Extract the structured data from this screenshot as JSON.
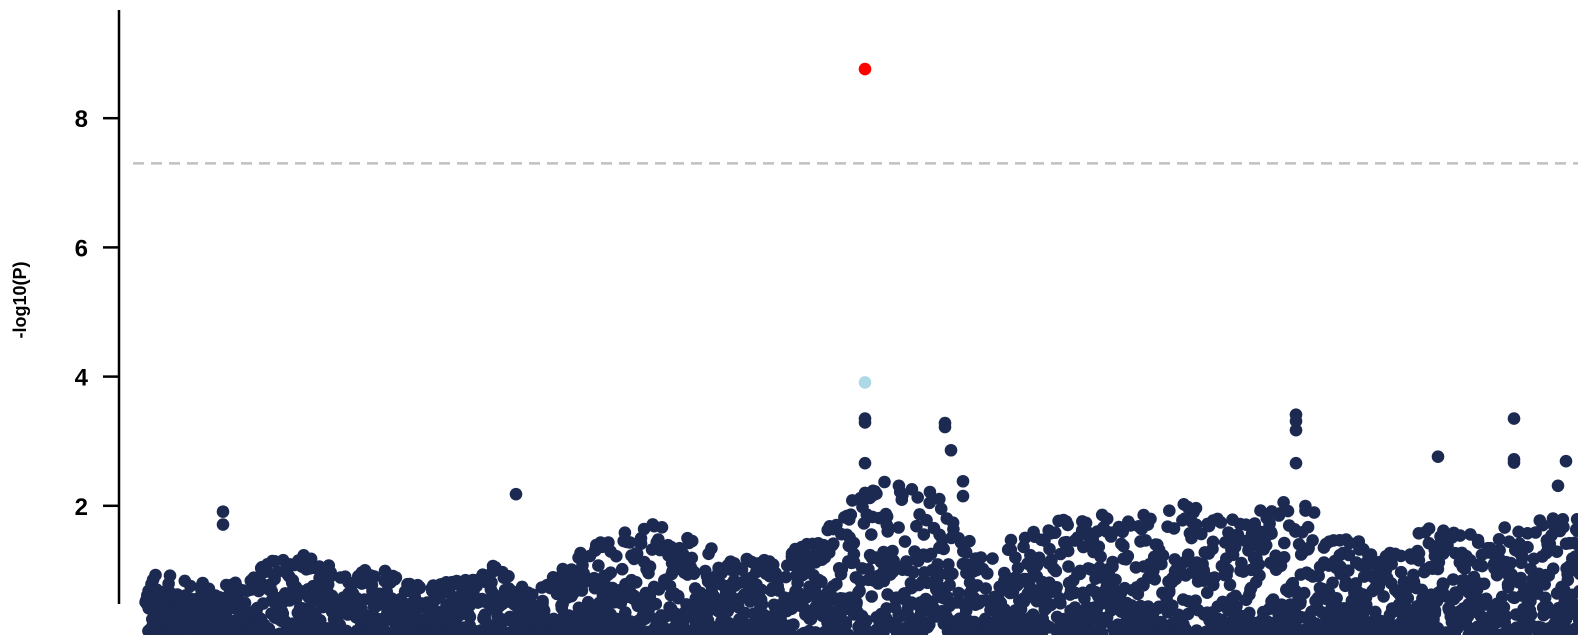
{
  "chart_data": {
    "type": "scatter",
    "title": "",
    "xlabel": "",
    "ylabel": "-log10(P)",
    "ylim": [
      0,
      9.6
    ],
    "yticks": [
      "2",
      "4",
      "6",
      "8"
    ],
    "ytick_values": [
      2,
      4,
      6,
      8
    ],
    "grid": false,
    "threshold": {
      "value": 7.3,
      "color": "#c0c0c0",
      "style": "dashed"
    },
    "colors": {
      "points": "#1c2a52",
      "lead": "#ff0000",
      "secondary": "#add8e6",
      "axis": "#000000"
    },
    "highlighted_points": [
      {
        "x": 731,
        "y": 8.76,
        "role": "lead"
      },
      {
        "x": 731,
        "y": 3.91,
        "role": "secondary"
      }
    ],
    "top_points": [
      {
        "x": 89,
        "y": 1.91
      },
      {
        "x": 89,
        "y": 1.71
      },
      {
        "x": 382,
        "y": 2.18
      },
      {
        "x": 731,
        "y": 3.35
      },
      {
        "x": 731,
        "y": 3.29
      },
      {
        "x": 731,
        "y": 2.66
      },
      {
        "x": 811,
        "y": 3.28
      },
      {
        "x": 811,
        "y": 3.22
      },
      {
        "x": 817,
        "y": 2.86
      },
      {
        "x": 829,
        "y": 2.38
      },
      {
        "x": 829,
        "y": 2.15
      },
      {
        "x": 1162,
        "y": 3.41
      },
      {
        "x": 1162,
        "y": 3.31
      },
      {
        "x": 1162,
        "y": 3.17
      },
      {
        "x": 1162,
        "y": 2.66
      },
      {
        "x": 1304,
        "y": 2.76
      },
      {
        "x": 1380,
        "y": 3.35
      },
      {
        "x": 1380,
        "y": 2.72
      },
      {
        "x": 1380,
        "y": 2.67
      },
      {
        "x": 1432,
        "y": 2.69
      },
      {
        "x": 1424,
        "y": 2.31
      }
    ],
    "background_cloud": {
      "x_range": [
        12,
        1446
      ],
      "baseline_max": [
        [
          12,
          1.0
        ],
        [
          60,
          0.85
        ],
        [
          100,
          0.8
        ],
        [
          150,
          1.35
        ],
        [
          200,
          1.1
        ],
        [
          250,
          1.0
        ],
        [
          300,
          0.8
        ],
        [
          360,
          1.1
        ],
        [
          400,
          0.6
        ],
        [
          440,
          1.3
        ],
        [
          480,
          1.6
        ],
        [
          520,
          1.75
        ],
        [
          560,
          1.5
        ],
        [
          600,
          1.2
        ],
        [
          650,
          1.2
        ],
        [
          700,
          1.8
        ],
        [
          731,
          2.3
        ],
        [
          760,
          2.4
        ],
        [
          800,
          2.3
        ],
        [
          850,
          1.2
        ],
        [
          900,
          1.7
        ],
        [
          950,
          1.85
        ],
        [
          1000,
          1.9
        ],
        [
          1050,
          2.05
        ],
        [
          1100,
          1.8
        ],
        [
          1140,
          2.0
        ],
        [
          1170,
          2.2
        ],
        [
          1200,
          1.6
        ],
        [
          1250,
          1.3
        ],
        [
          1300,
          1.75
        ],
        [
          1350,
          1.55
        ],
        [
          1400,
          1.9
        ],
        [
          1446,
          1.8
        ]
      ]
    }
  }
}
